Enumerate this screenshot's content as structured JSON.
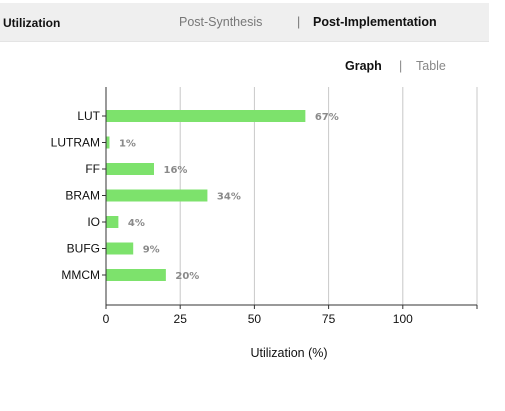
{
  "header": {
    "title": "Utilization",
    "tabs": [
      {
        "label": "Post-Synthesis",
        "active": false
      },
      {
        "label": "Post-Implementation",
        "active": true
      }
    ],
    "separator": "|"
  },
  "view": {
    "graph_label": "Graph",
    "table_label": "Table",
    "separator": "|",
    "active": "Graph"
  },
  "colors": {
    "bar": "#7de26c",
    "bar_stroke": "#5cc24c",
    "grid": "#c8c8c8",
    "axis": "#333333"
  },
  "chart_data": {
    "type": "bar",
    "orientation": "horizontal",
    "categories": [
      "LUT",
      "LUTRAM",
      "FF",
      "BRAM",
      "IO",
      "BUFG",
      "MMCM"
    ],
    "values": [
      67,
      1,
      16,
      34,
      4,
      9,
      20
    ],
    "value_labels": [
      "67%",
      "1%",
      "16%",
      "34%",
      "4%",
      "9%",
      "20%"
    ],
    "xlabel": "Utilization (%)",
    "ylabel": "",
    "xlim": [
      0,
      125
    ],
    "xticks": [
      0,
      25,
      50,
      75,
      100
    ],
    "xtick_labels": [
      "0",
      "25",
      "50",
      "75",
      "100"
    ],
    "grid": true
  }
}
